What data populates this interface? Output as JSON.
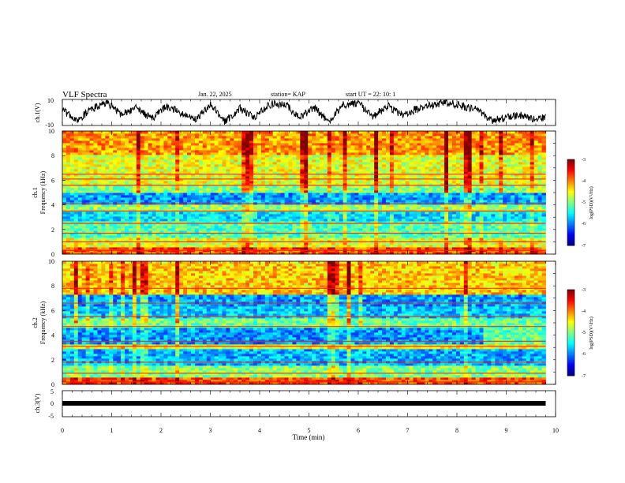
{
  "header": {
    "title": "VLF Spectra",
    "date": "Jan. 22, 2025",
    "station": "station= KAP",
    "start": "start  UT =   22: 10: 1"
  },
  "chart_data": [
    {
      "id": "ch1_waveform",
      "type": "line",
      "ylabel": "ch.1(V)",
      "ylim": [
        -10,
        10
      ],
      "yticks": [
        "10",
        "-10"
      ],
      "xlim": [
        0,
        10
      ],
      "data_end_min": 9.8,
      "approx_envelope": [
        {
          "t": 0.0,
          "v": 2
        },
        {
          "t": 0.3,
          "v": -6
        },
        {
          "t": 0.6,
          "v": 3
        },
        {
          "t": 0.9,
          "v": 8
        },
        {
          "t": 1.2,
          "v": -2
        },
        {
          "t": 1.5,
          "v": 4
        },
        {
          "t": 1.8,
          "v": -5
        },
        {
          "t": 2.1,
          "v": 5
        },
        {
          "t": 2.4,
          "v": 0
        },
        {
          "t": 2.7,
          "v": -6
        },
        {
          "t": 3.0,
          "v": 6
        },
        {
          "t": 3.3,
          "v": -7
        },
        {
          "t": 3.6,
          "v": 3
        },
        {
          "t": 3.9,
          "v": -4
        },
        {
          "t": 4.2,
          "v": 6
        },
        {
          "t": 4.5,
          "v": 7
        },
        {
          "t": 4.8,
          "v": -4
        },
        {
          "t": 5.1,
          "v": 4
        },
        {
          "t": 5.4,
          "v": -7
        },
        {
          "t": 5.7,
          "v": 6
        },
        {
          "t": 6.0,
          "v": 7
        },
        {
          "t": 6.3,
          "v": -3
        },
        {
          "t": 6.6,
          "v": 5
        },
        {
          "t": 6.9,
          "v": -2
        },
        {
          "t": 7.2,
          "v": 3
        },
        {
          "t": 7.5,
          "v": 6
        },
        {
          "t": 7.8,
          "v": 8
        },
        {
          "t": 8.1,
          "v": 5
        },
        {
          "t": 8.4,
          "v": 2
        },
        {
          "t": 8.7,
          "v": -6
        },
        {
          "t": 9.0,
          "v": -4
        },
        {
          "t": 9.3,
          "v": -2
        },
        {
          "t": 9.6,
          "v": -6
        },
        {
          "t": 9.8,
          "v": -3
        }
      ]
    },
    {
      "id": "ch1_spectrogram",
      "type": "heatmap",
      "ylabel_top": "ch.1",
      "ylabel": "Frequency  (kHz)",
      "ylim": [
        0,
        10
      ],
      "yticks": [
        "0",
        "2",
        "4",
        "6",
        "8",
        "10"
      ],
      "xlim": [
        0,
        10
      ],
      "data_end_min": 9.8,
      "colorbar": {
        "label": "log(PSD)(V²/Hz)",
        "range": [
          -7,
          -3
        ],
        "ticks": [
          "-3",
          "-4",
          "-5",
          "-6",
          "-7"
        ]
      },
      "bands_log_psd": [
        {
          "f_from": 0.0,
          "f_to": 0.6,
          "level": -3.8
        },
        {
          "f_from": 0.6,
          "f_to": 1.4,
          "level": -4.6
        },
        {
          "f_from": 1.4,
          "f_to": 2.6,
          "level": -5.2
        },
        {
          "f_from": 2.6,
          "f_to": 3.4,
          "level": -5.6
        },
        {
          "f_from": 3.4,
          "f_to": 4.1,
          "level": -4.9
        },
        {
          "f_from": 4.1,
          "f_to": 5.0,
          "level": -5.9
        },
        {
          "f_from": 5.0,
          "f_to": 5.6,
          "level": -5.0
        },
        {
          "f_from": 5.6,
          "f_to": 8.0,
          "level": -4.6
        },
        {
          "f_from": 8.0,
          "f_to": 10.0,
          "level": -4.1
        }
      ],
      "lines_khz": [
        0.3,
        1.0,
        1.7,
        2.5,
        3.5,
        4.1,
        5.6,
        6.1,
        6.5
      ]
    },
    {
      "id": "ch2_spectrogram",
      "type": "heatmap",
      "ylabel_top": "ch.2",
      "ylabel": "Frequency  (kHz)",
      "ylim": [
        0,
        10
      ],
      "yticks": [
        "0",
        "2",
        "4",
        "6",
        "8",
        "10"
      ],
      "xlim": [
        0,
        10
      ],
      "data_end_min": 9.8,
      "colorbar": {
        "label": "log(PSD)(V²/Hz)",
        "range": [
          -7,
          -3
        ],
        "ticks": [
          "-3",
          "-4",
          "-5",
          "-6",
          "-7"
        ]
      },
      "bands_log_psd": [
        {
          "f_from": 0.0,
          "f_to": 0.5,
          "level": -3.8
        },
        {
          "f_from": 0.5,
          "f_to": 1.5,
          "level": -5.0
        },
        {
          "f_from": 1.5,
          "f_to": 2.8,
          "level": -5.8
        },
        {
          "f_from": 2.8,
          "f_to": 3.3,
          "level": -4.6
        },
        {
          "f_from": 3.3,
          "f_to": 4.6,
          "level": -5.9
        },
        {
          "f_from": 4.6,
          "f_to": 5.4,
          "level": -5.1
        },
        {
          "f_from": 5.4,
          "f_to": 6.3,
          "level": -5.7
        },
        {
          "f_from": 6.3,
          "f_to": 7.3,
          "level": -5.9
        },
        {
          "f_from": 7.3,
          "f_to": 10.0,
          "level": -4.3
        }
      ],
      "lines_khz": [
        0.2,
        0.9,
        1.8,
        3.1,
        3.5,
        4.7,
        5.5,
        6.6,
        7.8
      ]
    },
    {
      "id": "ch3_waveform",
      "type": "line",
      "ylabel": "ch.3(V)",
      "ylim": [
        -5,
        5
      ],
      "yticks": [
        "5",
        "0",
        "-5"
      ],
      "xlim": [
        0,
        10
      ],
      "data_end_min": 9.8,
      "level_v": 0
    }
  ],
  "xaxis": {
    "label": "Time  (min)",
    "ticks": [
      "0",
      "1",
      "2",
      "3",
      "4",
      "5",
      "6",
      "7",
      "8",
      "9",
      "10"
    ]
  }
}
